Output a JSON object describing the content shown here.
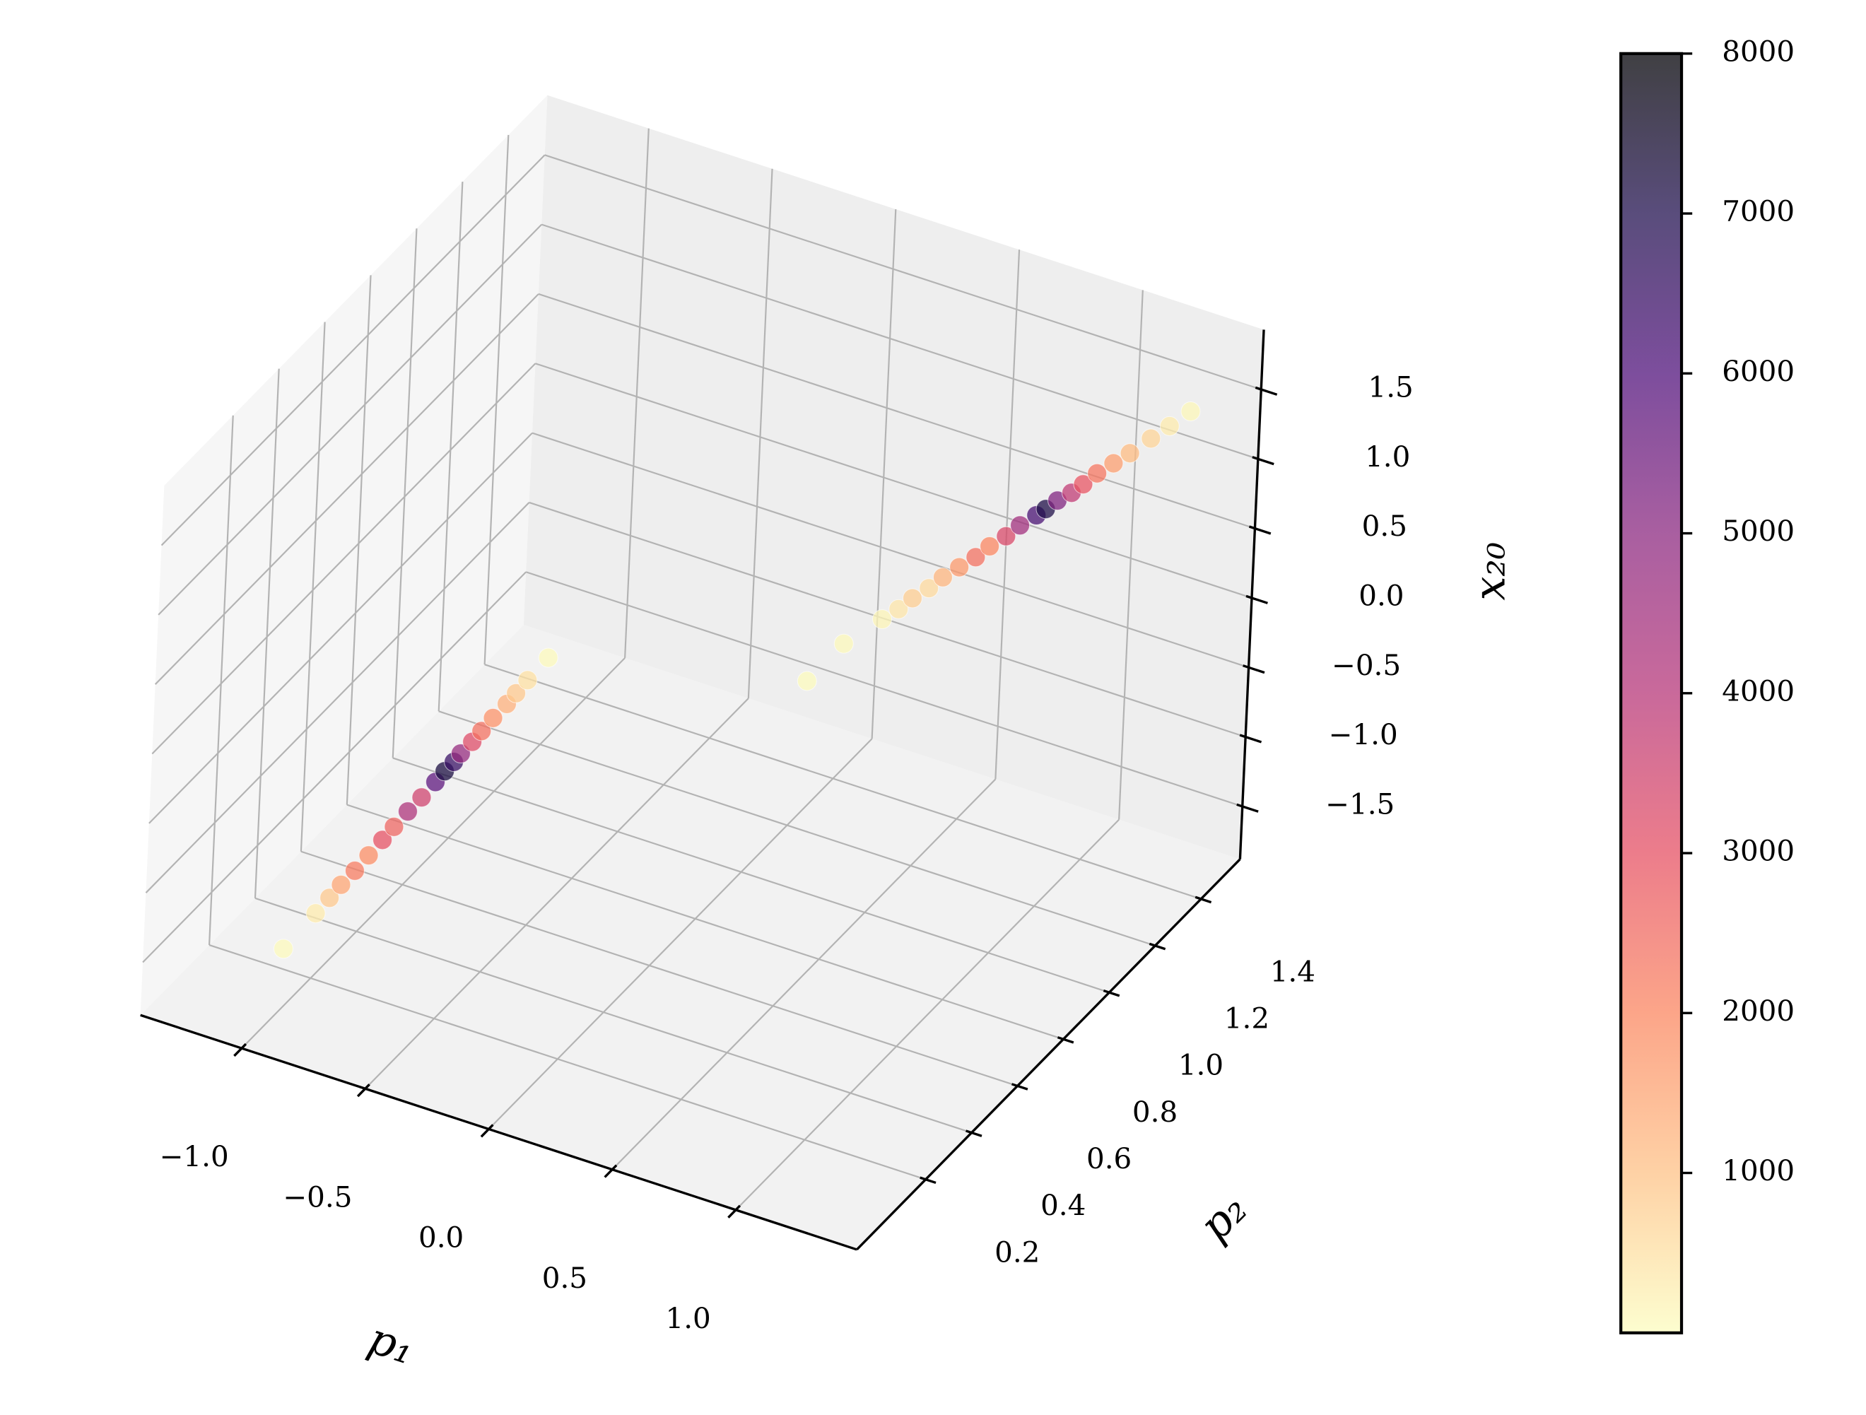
{
  "chart_data": {
    "type": "scatter3d",
    "xlabel": "p₁",
    "ylabel": "p₂",
    "zlabel": "x₂₀",
    "x": [
      -1.0,
      -1.0,
      -1.0,
      -1.0,
      -1.0,
      -1.0,
      -1.0,
      -1.0,
      -1.0,
      -1.0,
      -1.0,
      -1.0,
      -1.0,
      -1.0,
      -1.0,
      -1.0,
      -1.0,
      -1.0,
      -1.0,
      -1.0,
      -1.0,
      0.84,
      0.98,
      0.98,
      1.0,
      1.01,
      1.03,
      1.04,
      1.06,
      1.08,
      1.09,
      1.11,
      1.12,
      1.14,
      1.15,
      1.16,
      1.18,
      1.19,
      1.2,
      1.22,
      1.24,
      1.26,
      1.28,
      1.3
    ],
    "y": [
      0.07,
      0.21,
      0.27,
      0.32,
      0.38,
      0.44,
      0.5,
      0.55,
      0.61,
      0.67,
      0.73,
      0.77,
      0.81,
      0.84,
      0.89,
      0.93,
      0.98,
      1.04,
      1.08,
      1.13,
      1.22,
      0.3,
      0.3,
      0.47,
      0.52,
      0.57,
      0.62,
      0.67,
      0.72,
      0.77,
      0.82,
      0.87,
      0.92,
      0.97,
      1.0,
      1.04,
      1.08,
      1.12,
      1.17,
      1.22,
      1.27,
      1.34,
      1.4,
      1.47
    ],
    "z": [
      -1.45,
      -1.43,
      -1.42,
      -1.41,
      -1.41,
      -1.4,
      -1.39,
      -1.38,
      -1.37,
      -1.37,
      -1.36,
      -1.35,
      -1.35,
      -1.34,
      -1.34,
      -1.33,
      -1.32,
      -1.32,
      -1.31,
      -1.3,
      -1.29,
      1.16,
      1.51,
      1.4,
      1.4,
      1.4,
      1.4,
      1.4,
      1.4,
      1.4,
      1.4,
      1.4,
      1.4,
      1.4,
      1.4,
      1.4,
      1.4,
      1.4,
      1.4,
      1.4,
      1.4,
      1.4,
      1.4,
      1.4
    ],
    "values": [
      50,
      300,
      900,
      1500,
      2200,
      1900,
      3000,
      2600,
      4200,
      3500,
      5800,
      7200,
      6500,
      4800,
      3200,
      2400,
      1800,
      1300,
      900,
      500,
      60,
      40,
      80,
      150,
      400,
      800,
      600,
      1200,
      1700,
      2400,
      2000,
      3300,
      4500,
      6200,
      7100,
      5200,
      3800,
      2900,
      2300,
      1600,
      1100,
      700,
      300,
      100
    ],
    "xlim": [
      -1.41,
      1.49
    ],
    "ylim": [
      -0.1,
      1.57
    ],
    "zlim": [
      -1.88,
      1.93
    ],
    "xticks": [
      {
        "value": -1.0,
        "label": "−1.0"
      },
      {
        "value": -0.5,
        "label": "−0.5"
      },
      {
        "value": 0,
        "label": "0.0"
      },
      0.5,
      {
        "value": 1.0,
        "label": "1.0"
      }
    ],
    "yticks": [
      0.2,
      0.4,
      0.6,
      0.8,
      {
        "value": 1.0,
        "label": "1.0"
      },
      1.2,
      1.4
    ],
    "zticks": [
      {
        "value": -1.5,
        "label": "−1.5"
      },
      {
        "value": -1.0,
        "label": "−1.0"
      },
      {
        "value": -0.5,
        "label": "−0.5"
      },
      {
        "value": 0,
        "label": "0.0"
      },
      0.5,
      {
        "value": 1.0,
        "label": "1.0"
      },
      1.5
    ],
    "grid": true,
    "alpha": 0.75,
    "colorbar": {
      "clim": [
        0,
        8000
      ],
      "ticks": [
        1000,
        2000,
        3000,
        4000,
        5000,
        6000,
        7000,
        8000
      ],
      "colormap": [
        "#fcfdbf",
        "#fec287",
        "#fb8761",
        "#e65164",
        "#b73779",
        "#8c2981",
        "#51127c",
        "#221150",
        "#000004"
      ]
    }
  }
}
